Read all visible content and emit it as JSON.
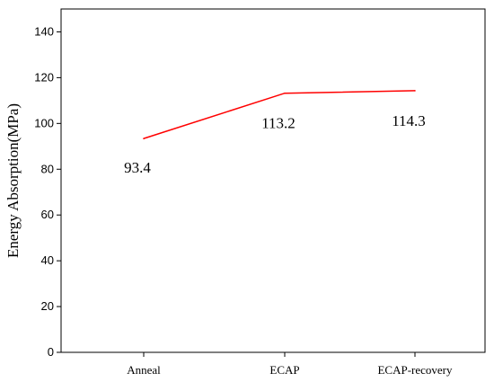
{
  "chart_data": {
    "type": "line",
    "title": "",
    "xlabel": "",
    "ylabel": "Energy Absorption(MPa)",
    "categories": [
      "Anneal",
      "ECAP",
      "ECAP-recovery"
    ],
    "series": [
      {
        "values": [
          93.4,
          113.2,
          114.3
        ],
        "color": "#ff0000"
      }
    ],
    "data_labels": [
      "93.4",
      "113.2",
      "114.3"
    ],
    "ylim": [
      0,
      150
    ],
    "yticks": [
      0,
      20,
      40,
      60,
      80,
      100,
      120,
      140
    ],
    "grid": false,
    "legend": "none"
  }
}
